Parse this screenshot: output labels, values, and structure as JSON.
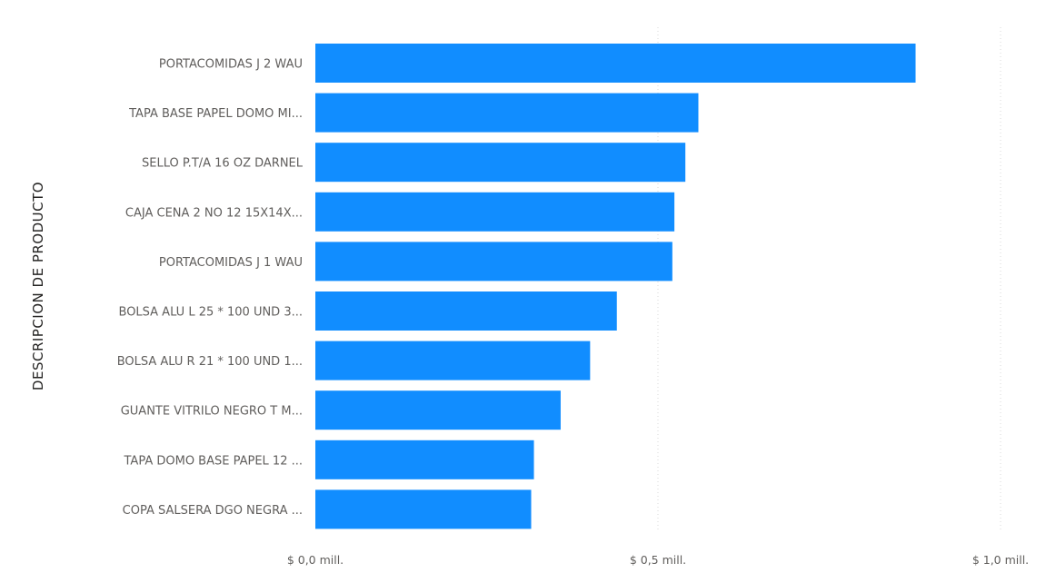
{
  "chart_data": {
    "type": "bar",
    "orientation": "horizontal",
    "ylabel": "DESCRIPCION DE PRODUCTO",
    "xlabel": "",
    "categories": [
      "PORTACOMIDAS J 2 WAU",
      "TAPA BASE PAPEL DOMO MI...",
      "SELLO P.T/A 16 OZ DARNEL",
      "CAJA CENA 2 NO 12 15X14X...",
      "PORTACOMIDAS J 1 WAU",
      "BOLSA ALU L 25 * 100 UND 3...",
      "BOLSA ALU R 21 * 100 UND 1...",
      "GUANTE VITRILO NEGRO T M...",
      "TAPA DOMO BASE PAPEL 12 ...",
      "COPA SALSERA DGO NEGRA ..."
    ],
    "series": [
      {
        "values": [
          0.876,
          0.559,
          0.54,
          0.524,
          0.521,
          0.44,
          0.401,
          0.358,
          0.319,
          0.315
        ]
      }
    ],
    "xlim": [
      0,
      1.0
    ],
    "xticks": [
      0,
      0.5,
      1.0
    ],
    "xtick_labels": [
      "$ 0,0 mill.",
      "$ 0,5 mill.",
      "$ 1,0 mill."
    ],
    "grid": true,
    "bar_color": "#118dff"
  }
}
